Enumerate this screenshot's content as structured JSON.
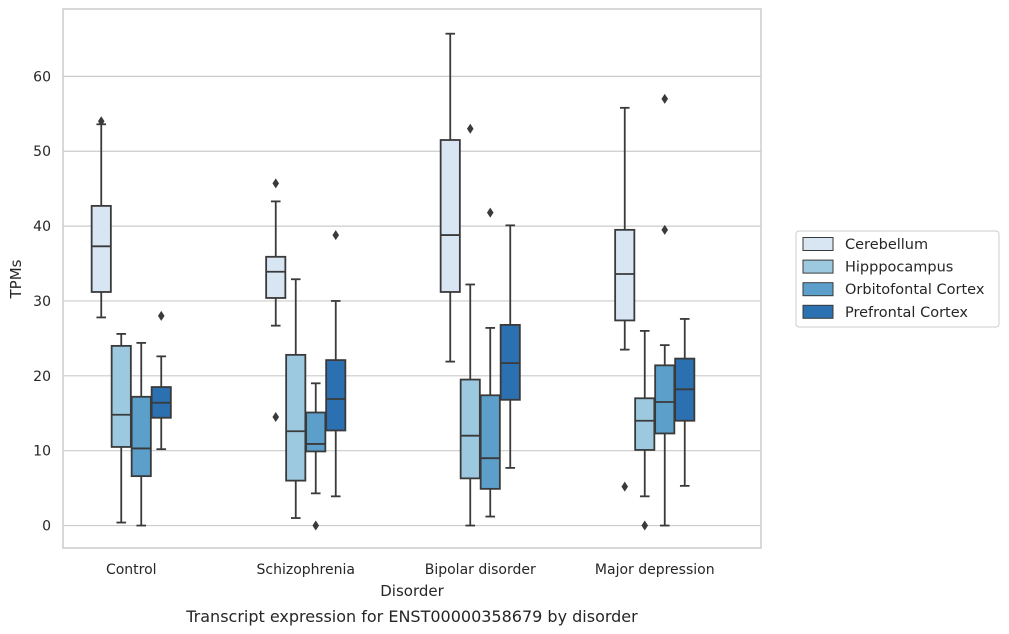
{
  "chart_data": {
    "type": "box",
    "caption": "Transcript expression for ENST00000358679 by disorder",
    "xlabel": "Disorder",
    "ylabel": "TPMs",
    "ylim": [
      -3,
      69
    ],
    "yticks": [
      0,
      10,
      20,
      30,
      40,
      50,
      60
    ],
    "grid": "horizontal",
    "legend_position": "right",
    "categories": [
      "Control",
      "Schizophrenia",
      "Bipolar disorder",
      "Major depression"
    ],
    "series": [
      {
        "name": "Cerebellum",
        "color": "#d8e6f4",
        "boxes": [
          {
            "whislo": 27.8,
            "q1": 31.2,
            "med": 37.3,
            "q3": 42.7,
            "whishi": 53.6,
            "fliers": [
              54.0
            ]
          },
          {
            "whislo": 26.7,
            "q1": 30.4,
            "med": 33.9,
            "q3": 35.9,
            "whishi": 43.3,
            "fliers": [
              45.7,
              14.5
            ]
          },
          {
            "whislo": 21.9,
            "q1": 31.2,
            "med": 38.8,
            "q3": 51.5,
            "whishi": 65.7,
            "fliers": []
          },
          {
            "whislo": 23.5,
            "q1": 27.4,
            "med": 33.6,
            "q3": 39.5,
            "whishi": 55.8,
            "fliers": [
              5.2
            ]
          }
        ]
      },
      {
        "name": "Hipppocampus",
        "color": "#9dc9e0",
        "boxes": [
          {
            "whislo": 0.4,
            "q1": 10.5,
            "med": 14.8,
            "q3": 24.0,
            "whishi": 25.6,
            "fliers": []
          },
          {
            "whislo": 1.0,
            "q1": 6.0,
            "med": 12.6,
            "q3": 22.8,
            "whishi": 32.9,
            "fliers": []
          },
          {
            "whislo": 0.0,
            "q1": 6.3,
            "med": 12.0,
            "q3": 19.5,
            "whishi": 32.2,
            "fliers": [
              53.0
            ]
          },
          {
            "whislo": 3.9,
            "q1": 10.1,
            "med": 14.0,
            "q3": 17.0,
            "whishi": 26.0,
            "fliers": [
              0.0
            ]
          }
        ]
      },
      {
        "name": "Orbitofontal Cortex",
        "color": "#5b9fca",
        "boxes": [
          {
            "whislo": 0.0,
            "q1": 6.6,
            "med": 10.3,
            "q3": 17.2,
            "whishi": 24.4,
            "fliers": []
          },
          {
            "whislo": 4.3,
            "q1": 9.9,
            "med": 10.9,
            "q3": 15.1,
            "whishi": 19.0,
            "fliers": [
              0.0
            ]
          },
          {
            "whislo": 1.2,
            "q1": 4.9,
            "med": 9.0,
            "q3": 17.4,
            "whishi": 26.4,
            "fliers": [
              41.8
            ]
          },
          {
            "whislo": 0.0,
            "q1": 12.3,
            "med": 16.5,
            "q3": 21.4,
            "whishi": 24.1,
            "fliers": [
              39.5,
              57.0
            ]
          }
        ]
      },
      {
        "name": "Prefrontal Cortex",
        "color": "#2b70b1",
        "boxes": [
          {
            "whislo": 10.2,
            "q1": 14.4,
            "med": 16.4,
            "q3": 18.5,
            "whishi": 22.6,
            "fliers": [
              28.0
            ]
          },
          {
            "whislo": 3.9,
            "q1": 12.7,
            "med": 16.9,
            "q3": 22.1,
            "whishi": 30.0,
            "fliers": [
              38.8
            ]
          },
          {
            "whislo": 7.7,
            "q1": 16.8,
            "med": 21.7,
            "q3": 26.8,
            "whishi": 40.1,
            "fliers": []
          },
          {
            "whislo": 5.3,
            "q1": 14.0,
            "med": 18.2,
            "q3": 22.3,
            "whishi": 27.6,
            "fliers": []
          }
        ]
      }
    ]
  }
}
